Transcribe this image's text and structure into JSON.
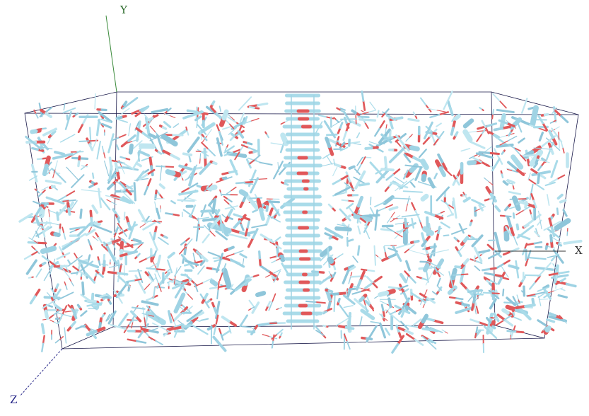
{
  "axes": {
    "y": "Y",
    "x": "X",
    "z": "Z"
  }
}
